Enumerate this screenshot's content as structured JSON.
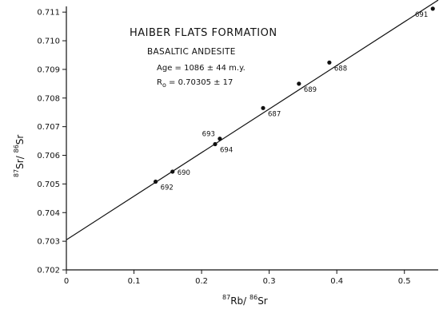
{
  "chart_data": {
    "type": "scatter",
    "title": "HAIBER FLATS FORMATION",
    "subtitle": "BASALTIC ANDESITE",
    "annotations": {
      "age": "Age = 1086 ± 44 m.y.",
      "ro_symbol": "R",
      "ro_sub": "o",
      "ro_value": " = 0.70305 ± 17"
    },
    "xlabel": {
      "sup1": "87",
      "main1": "Rb/ ",
      "sup2": "86",
      "main2": "Sr"
    },
    "ylabel": {
      "sup1": "87",
      "main1": "Sr/ ",
      "sup2": "86",
      "main2": "Sr"
    },
    "xlim": [
      0,
      0.55
    ],
    "ylim": [
      0.702,
      0.7112
    ],
    "xticks": [
      0,
      0.1,
      0.2,
      0.3,
      0.4,
      0.5
    ],
    "xtick_labels": [
      "0",
      "0.1",
      "0.2",
      "0.3",
      "0.4",
      "0.5"
    ],
    "yticks": [
      0.702,
      0.703,
      0.704,
      0.705,
      0.706,
      0.707,
      0.708,
      0.709,
      0.71,
      0.711
    ],
    "ytick_labels": [
      "0.702",
      "0.703",
      "0.704",
      "0.705",
      "0.706",
      "0.707",
      "0.708",
      "0.709",
      "0.710",
      "0.711"
    ],
    "grid": false,
    "points": [
      {
        "label": "692",
        "x": 0.132,
        "y": 0.70508,
        "label_pos": "right-below"
      },
      {
        "label": "690",
        "x": 0.157,
        "y": 0.70543,
        "label_pos": "right"
      },
      {
        "label": "694",
        "x": 0.22,
        "y": 0.70639,
        "label_pos": "right-below"
      },
      {
        "label": "693",
        "x": 0.227,
        "y": 0.70658,
        "label_pos": "left-above"
      },
      {
        "label": "687",
        "x": 0.291,
        "y": 0.70765,
        "label_pos": "right-below"
      },
      {
        "label": "689",
        "x": 0.344,
        "y": 0.7085,
        "label_pos": "right-below"
      },
      {
        "label": "688",
        "x": 0.389,
        "y": 0.70924,
        "label_pos": "right-below"
      },
      {
        "label": "691",
        "x": 0.542,
        "y": 0.71112,
        "label_pos": "left-below"
      }
    ],
    "regression_line": {
      "intercept": 0.70305,
      "slope": 0.01522
    }
  }
}
